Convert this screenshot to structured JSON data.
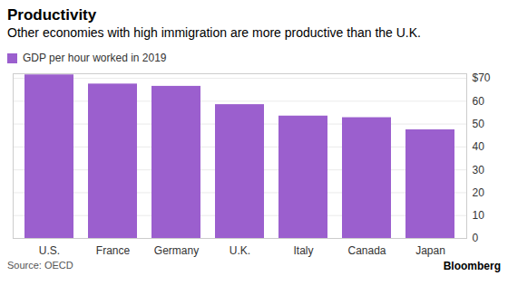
{
  "chart_data": {
    "type": "bar",
    "title": "Productivity",
    "subtitle": "Other economies with high immigration are more productive than the U.K.",
    "categories": [
      "U.S.",
      "France",
      "Germany",
      "U.K.",
      "Italy",
      "Canada",
      "Japan"
    ],
    "series": [
      {
        "name": "GDP per hour worked in 2019",
        "color": "#9b5fce",
        "values": [
          71.5,
          67.5,
          66.5,
          58.5,
          53.5,
          52.8,
          47.5
        ]
      }
    ],
    "ylim": [
      0,
      72
    ],
    "yticks": [
      0,
      10,
      20,
      30,
      40,
      50,
      60,
      {
        "value": 70,
        "label": "$70"
      }
    ],
    "grid": true,
    "legend": "top-left",
    "source": "Source: OECD",
    "credit": "Bloomberg"
  }
}
